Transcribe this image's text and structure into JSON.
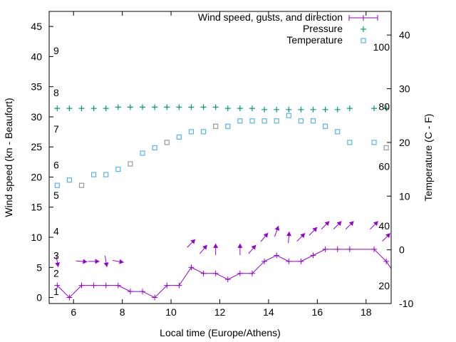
{
  "chart_data": {
    "type": "line",
    "title": "",
    "xlabel": "Local time (Europe/Athens)",
    "ylabel": "Wind speed (kn - Beaufort)",
    "y2label": "Temperature (C - F)",
    "xlim": [
      5,
      19.03
    ],
    "ylim": [
      -1,
      47.5
    ],
    "y2lim": [
      -10,
      44.4
    ],
    "xticks": [
      6,
      8,
      10,
      12,
      14,
      16,
      18
    ],
    "yticks": [
      0,
      5,
      10,
      15,
      20,
      25,
      30,
      35,
      40,
      45
    ],
    "y2ticks": [
      -10,
      0,
      10,
      20,
      30,
      40
    ],
    "grid": false,
    "legend_position": "top-right",
    "beaufort_labels": [
      {
        "label": "1",
        "kn": 1
      },
      {
        "label": "2",
        "kn": 4
      },
      {
        "label": "3",
        "kn": 7
      },
      {
        "label": "4",
        "kn": 11
      },
      {
        "label": "5",
        "kn": 17
      },
      {
        "label": "6",
        "kn": 22
      },
      {
        "label": "7",
        "kn": 28
      },
      {
        "label": "8",
        "kn": 34
      },
      {
        "label": "9",
        "kn": 41
      }
    ],
    "fahrenheit_labels": [
      {
        "label": "20",
        "f": 20
      },
      {
        "label": "40",
        "f": 40
      },
      {
        "label": "60",
        "f": 60
      },
      {
        "label": "80",
        "f": 80
      },
      {
        "label": "100",
        "f": 100
      }
    ],
    "x": [
      5.33,
      5.83,
      6.33,
      6.83,
      7.33,
      7.83,
      8.33,
      8.83,
      9.33,
      9.83,
      10.33,
      10.83,
      11.33,
      11.83,
      12.33,
      12.83,
      13.33,
      13.83,
      14.33,
      14.83,
      15.33,
      15.83,
      16.33,
      16.83,
      17.33,
      18.33,
      18.83,
      19.33
    ],
    "series": [
      {
        "name": "Wind speed, gusts, and direction",
        "color": "#9400d3",
        "axis": "y",
        "values": [
          2,
          0,
          2,
          2,
          2,
          2,
          1,
          1,
          0,
          2,
          2,
          5,
          4,
          4,
          3,
          4,
          4,
          6,
          7,
          6,
          6,
          7,
          8,
          8,
          8,
          8,
          6,
          3
        ],
        "gusts": [
          6,
          null,
          6,
          6,
          6,
          6,
          null,
          null,
          null,
          null,
          null,
          9,
          8,
          8,
          null,
          8,
          8,
          10,
          11,
          10,
          10,
          11,
          12,
          12,
          12,
          12,
          10,
          null
        ],
        "direction_deg": [
          170,
          null,
          95,
          90,
          170,
          100,
          null,
          null,
          null,
          null,
          null,
          45,
          40,
          0,
          null,
          0,
          40,
          40,
          20,
          5,
          45,
          45,
          45,
          45,
          45,
          45,
          45,
          null
        ]
      },
      {
        "name": "Pressure",
        "color": "#009e73",
        "axis": "y",
        "values": [
          31.4,
          31.4,
          31.4,
          31.4,
          31.4,
          31.6,
          31.6,
          31.6,
          31.6,
          31.6,
          31.6,
          31.6,
          31.6,
          31.6,
          31.4,
          31.4,
          31.4,
          31.2,
          31.2,
          31.2,
          31.2,
          31.2,
          31.2,
          31.2,
          31.4,
          31.4,
          31.4,
          null
        ]
      },
      {
        "name": "Temperature",
        "color": "#56b4e9",
        "alt_color": "#999999",
        "axis": "y2",
        "values": [
          12,
          13,
          12,
          14,
          14,
          15,
          16,
          18,
          19,
          20,
          21,
          22,
          22,
          23,
          23,
          24,
          24,
          24,
          24,
          25,
          24,
          24,
          23,
          22,
          20,
          20,
          19,
          null
        ],
        "alt": [
          false,
          false,
          true,
          false,
          false,
          false,
          true,
          false,
          false,
          true,
          false,
          false,
          false,
          true,
          false,
          false,
          false,
          false,
          false,
          false,
          false,
          false,
          false,
          false,
          false,
          false,
          true,
          false
        ]
      }
    ]
  }
}
